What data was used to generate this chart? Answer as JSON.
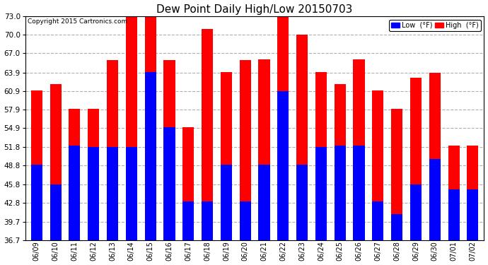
{
  "title": "Dew Point Daily High/Low 20150703",
  "copyright": "Copyright 2015 Cartronics.com",
  "dates": [
    "06/09",
    "06/10",
    "06/11",
    "06/12",
    "06/13",
    "06/14",
    "06/15",
    "06/16",
    "06/17",
    "06/18",
    "06/19",
    "06/20",
    "06/21",
    "06/22",
    "06/23",
    "06/24",
    "06/25",
    "06/26",
    "06/27",
    "06/28",
    "06/29",
    "06/30",
    "07/01",
    "07/02"
  ],
  "high": [
    61.0,
    62.0,
    58.0,
    58.0,
    65.9,
    73.0,
    73.0,
    65.9,
    55.0,
    71.0,
    64.0,
    65.9,
    66.0,
    73.0,
    70.0,
    64.0,
    62.0,
    66.0,
    61.0,
    58.0,
    63.0,
    63.9,
    52.0,
    52.0
  ],
  "low": [
    49.0,
    45.8,
    52.0,
    51.8,
    51.8,
    51.8,
    64.0,
    55.0,
    43.0,
    43.0,
    49.0,
    43.0,
    49.0,
    60.9,
    49.0,
    51.8,
    52.0,
    52.0,
    43.0,
    41.0,
    45.8,
    49.9,
    44.9,
    44.9
  ],
  "high_color": "#ff0000",
  "low_color": "#0000ff",
  "bg_color": "#ffffff",
  "grid_color": "#b0b0b0",
  "yticks": [
    36.7,
    39.7,
    42.8,
    45.8,
    48.8,
    51.8,
    54.9,
    57.9,
    60.9,
    63.9,
    67.0,
    70.0,
    73.0
  ],
  "ymin": 36.7,
  "ymax": 73.0,
  "bar_width": 0.6
}
